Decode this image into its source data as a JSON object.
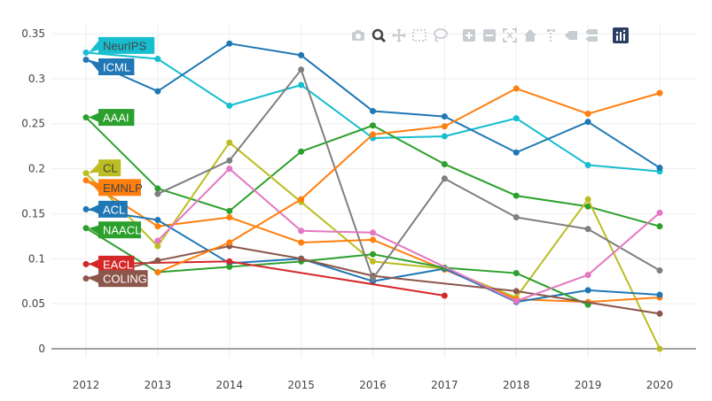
{
  "chart_data": {
    "type": "line",
    "x": [
      2012,
      2013,
      2014,
      2015,
      2016,
      2017,
      2018,
      2019,
      2020
    ],
    "xtick_labels": [
      "2012",
      "2013",
      "2014",
      "2015",
      "2016",
      "2017",
      "2018",
      "2019",
      "2020"
    ],
    "ylim": [
      -0.02,
      0.36
    ],
    "yticks": [
      0,
      0.05,
      0.1,
      0.15,
      0.2,
      0.25,
      0.3,
      0.35
    ],
    "ytick_labels": [
      "0",
      "0.05",
      "0.1",
      "0.15",
      "0.2",
      "0.25",
      "0.3",
      "0.35"
    ],
    "grid": true,
    "series": [
      {
        "name": "NeurIPS",
        "color": "#17becf",
        "values": [
          0.329,
          0.322,
          0.27,
          0.293,
          0.234,
          0.236,
          0.256,
          0.204,
          0.197
        ]
      },
      {
        "name": "ICML",
        "color": "#1f77b4",
        "values": [
          0.321,
          0.286,
          0.339,
          0.326,
          0.264,
          0.258,
          0.218,
          0.252,
          0.201
        ]
      },
      {
        "name": "AAAI",
        "color": "#2ca02c",
        "values": [
          0.257,
          0.178,
          0.153,
          0.219,
          0.248,
          0.205,
          0.17,
          0.158,
          0.136
        ]
      },
      {
        "name": "CL",
        "color": "#bcbd22",
        "values": [
          0.195,
          0.114,
          0.229,
          0.163,
          0.097,
          0.089,
          0.057,
          0.166,
          0.0
        ]
      },
      {
        "name": "EMNLP",
        "color": "#ff7f0e",
        "values": [
          0.187,
          0.136,
          0.146,
          0.118,
          0.121,
          0.088,
          0.055,
          0.052,
          0.057
        ]
      },
      {
        "name": "ACL",
        "color": "#1f77b4",
        "values": [
          0.155,
          0.143,
          0.095,
          0.1,
          0.075,
          0.089,
          0.052,
          0.065,
          0.06
        ]
      },
      {
        "name": "NAACL",
        "color": "#2ca02c",
        "values": [
          0.134,
          0.085,
          0.091,
          0.097,
          0.105,
          0.09,
          0.084,
          0.049,
          null
        ]
      },
      {
        "name": "EACL",
        "color": "#d62728",
        "values": [
          0.094,
          null,
          0.097,
          null,
          null,
          0.059,
          null,
          null,
          null
        ]
      },
      {
        "name": "COLING",
        "color": "#8c564b",
        "values": [
          0.078,
          0.098,
          0.114,
          0.1,
          0.081,
          null,
          0.064,
          null,
          0.039
        ]
      },
      {
        "name": "",
        "color": "#7f7f7f",
        "values": [
          null,
          0.172,
          0.209,
          0.31,
          0.078,
          0.189,
          0.146,
          0.133,
          0.087
        ]
      },
      {
        "name": "",
        "color": "#e377c2",
        "values": [
          null,
          0.12,
          0.2,
          0.131,
          0.129,
          null,
          0.053,
          0.082,
          0.151
        ]
      },
      {
        "name": "",
        "color": "#ff7f0e",
        "values": [
          null,
          0.085,
          0.118,
          0.166,
          0.238,
          0.247,
          0.289,
          0.261,
          0.284
        ]
      }
    ],
    "annotations": [
      {
        "text": "NeurIPS",
        "series": "NeurIPS",
        "bg": "#17becf",
        "fg": "#444444"
      },
      {
        "text": "ICML",
        "series": "ICML",
        "bg": "#1f77b4",
        "fg": "#ffffff"
      },
      {
        "text": "AAAI",
        "series": "AAAI",
        "bg": "#2ca02c",
        "fg": "#ffffff"
      },
      {
        "text": "CL",
        "series": "CL",
        "bg": "#bcbd22",
        "fg": "#444444"
      },
      {
        "text": "EMNLP",
        "series": "EMNLP",
        "bg": "#ff7f0e",
        "fg": "#444444"
      },
      {
        "text": "ACL",
        "series": "ACL",
        "bg": "#1f77b4",
        "fg": "#ffffff"
      },
      {
        "text": "NAACL",
        "series": "NAACL",
        "bg": "#2ca02c",
        "fg": "#ffffff"
      },
      {
        "text": "EACL",
        "series": "EACL",
        "bg": "#d62728",
        "fg": "#ffffff"
      },
      {
        "text": "COLING",
        "series": "COLING",
        "bg": "#8c564b",
        "fg": "#ffffff"
      }
    ]
  },
  "modebar": {
    "buttons": [
      "camera-icon",
      "zoom-icon",
      "pan-icon",
      "box-select-icon",
      "lasso-select-icon",
      "zoom-in-icon",
      "zoom-out-icon",
      "autoscale-icon",
      "reset-axes-icon",
      "spike-lines-icon",
      "hover-closest-icon",
      "hover-compare-icon",
      "plotly-logo-icon"
    ],
    "active": "zoom-icon",
    "color": "#c8cdd2",
    "active_color": "#444444",
    "logo_color": "#2c3e63"
  }
}
